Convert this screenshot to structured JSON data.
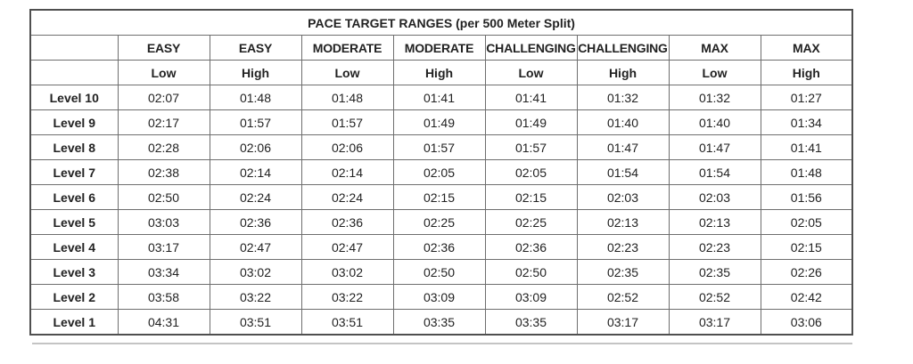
{
  "chart_data": {
    "type": "table",
    "title": "PACE TARGET RANGES (per 500 Meter Split)",
    "header_row_1": [
      "",
      "EASY",
      "EASY",
      "MODERATE",
      "MODERATE",
      "CHALLENGING",
      "CHALLENGING",
      "MAX",
      "MAX"
    ],
    "header_row_2": [
      "",
      "Low",
      "High",
      "Low",
      "High",
      "Low",
      "High",
      "Low",
      "High"
    ],
    "rows": [
      [
        "Level 10",
        "02:07",
        "01:48",
        "01:48",
        "01:41",
        "01:41",
        "01:32",
        "01:32",
        "01:27"
      ],
      [
        "Level 9",
        "02:17",
        "01:57",
        "01:57",
        "01:49",
        "01:49",
        "01:40",
        "01:40",
        "01:34"
      ],
      [
        "Level 8",
        "02:28",
        "02:06",
        "02:06",
        "01:57",
        "01:57",
        "01:47",
        "01:47",
        "01:41"
      ],
      [
        "Level 7",
        "02:38",
        "02:14",
        "02:14",
        "02:05",
        "02:05",
        "01:54",
        "01:54",
        "01:48"
      ],
      [
        "Level 6",
        "02:50",
        "02:24",
        "02:24",
        "02:15",
        "02:15",
        "02:03",
        "02:03",
        "01:56"
      ],
      [
        "Level 5",
        "03:03",
        "02:36",
        "02:36",
        "02:25",
        "02:25",
        "02:13",
        "02:13",
        "02:05"
      ],
      [
        "Level 4",
        "03:17",
        "02:47",
        "02:47",
        "02:36",
        "02:36",
        "02:23",
        "02:23",
        "02:15"
      ],
      [
        "Level 3",
        "03:34",
        "03:02",
        "03:02",
        "02:50",
        "02:50",
        "02:35",
        "02:35",
        "02:26"
      ],
      [
        "Level 2",
        "03:58",
        "03:22",
        "03:22",
        "03:09",
        "03:09",
        "02:52",
        "02:52",
        "02:42"
      ],
      [
        "Level 1",
        "04:31",
        "03:51",
        "03:51",
        "03:35",
        "03:35",
        "03:17",
        "03:17",
        "03:06"
      ]
    ],
    "layout": {
      "units": "minutes:seconds per 500m",
      "row_label_column": "Level",
      "grid": true
    }
  },
  "colors": {
    "background": "#ffffff",
    "text": "#222222",
    "inner_border": "#6e6e6e",
    "outer_border": "#4f4f4f",
    "divider": "#c4c4c4"
  }
}
